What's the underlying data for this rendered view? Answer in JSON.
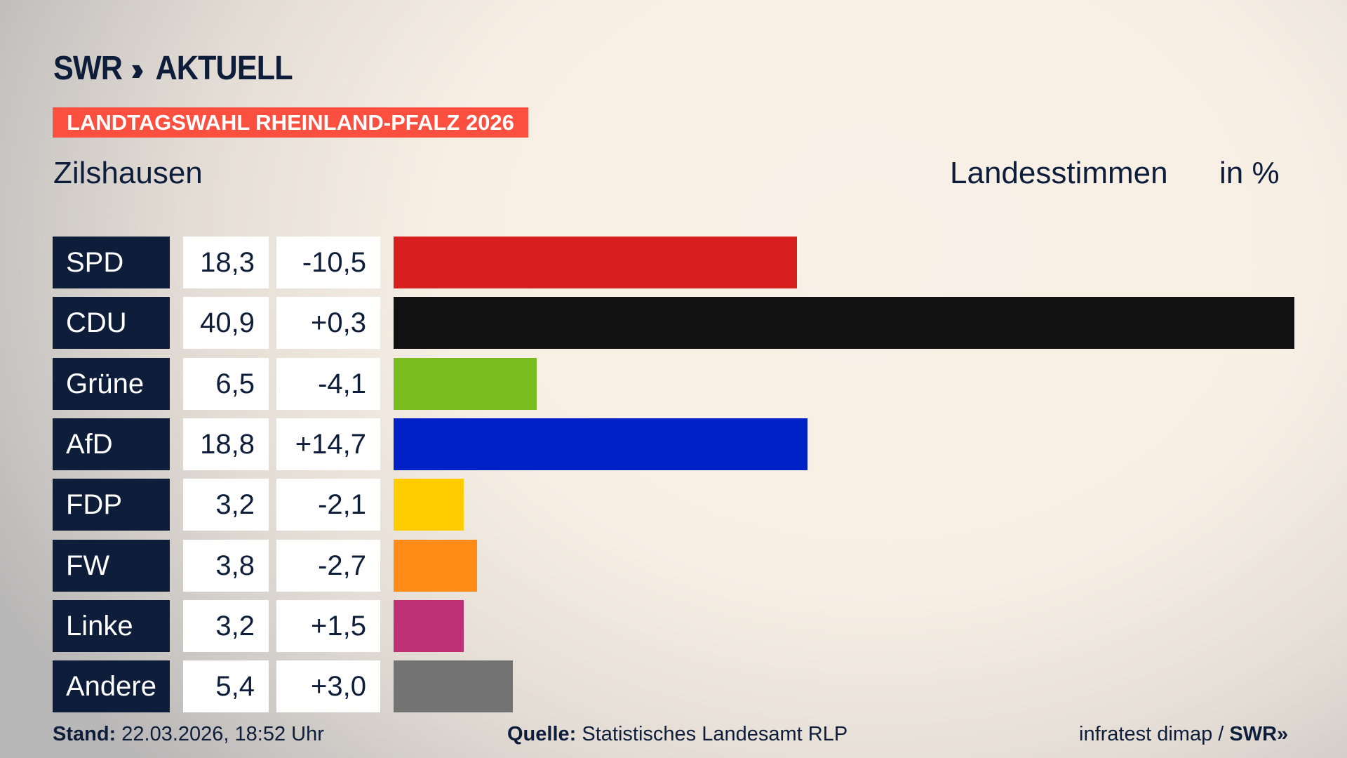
{
  "header": {
    "logo_text": "SWR",
    "logo_suffix": "AKTUELL",
    "banner": "LANDTAGSWAHL RHEINLAND-PFALZ 2026",
    "place": "Zilshausen",
    "vote_type": "Landesstimmen",
    "unit": "in %"
  },
  "colors": {
    "navy": "#0d1d3a",
    "banner": "#fb4f3f"
  },
  "chart_data": {
    "type": "bar",
    "orientation": "horizontal",
    "categories": [
      "SPD",
      "CDU",
      "Grüne",
      "AfD",
      "FDP",
      "FW",
      "Linke",
      "Andere"
    ],
    "values": [
      18.3,
      40.9,
      6.5,
      18.8,
      3.2,
      3.8,
      3.2,
      5.4
    ],
    "value_labels": [
      "18,3",
      "40,9",
      "6,5",
      "18,8",
      "3,2",
      "3,8",
      "3,2",
      "5,4"
    ],
    "changes": [
      -10.5,
      0.3,
      -4.1,
      14.7,
      -2.1,
      -2.7,
      1.5,
      3.0
    ],
    "change_labels": [
      "-10,5",
      "+0,3",
      "-4,1",
      "+14,7",
      "-2,1",
      "-2,7",
      "+1,5",
      "+3,0"
    ],
    "colors": [
      "#d71f20",
      "#111111",
      "#78bc1e",
      "#0021c8",
      "#ffcc00",
      "#ff8c17",
      "#bd3075",
      "#737373"
    ],
    "xlim": [
      0,
      40.9
    ],
    "grid": false
  },
  "footer": {
    "stand_label": "Stand:",
    "stand_value": "22.03.2026, 18:52 Uhr",
    "source_label": "Quelle:",
    "source_value": "Statistisches Landesamt RLP",
    "credit": "infratest dimap /",
    "credit_logo": "SWR»"
  }
}
